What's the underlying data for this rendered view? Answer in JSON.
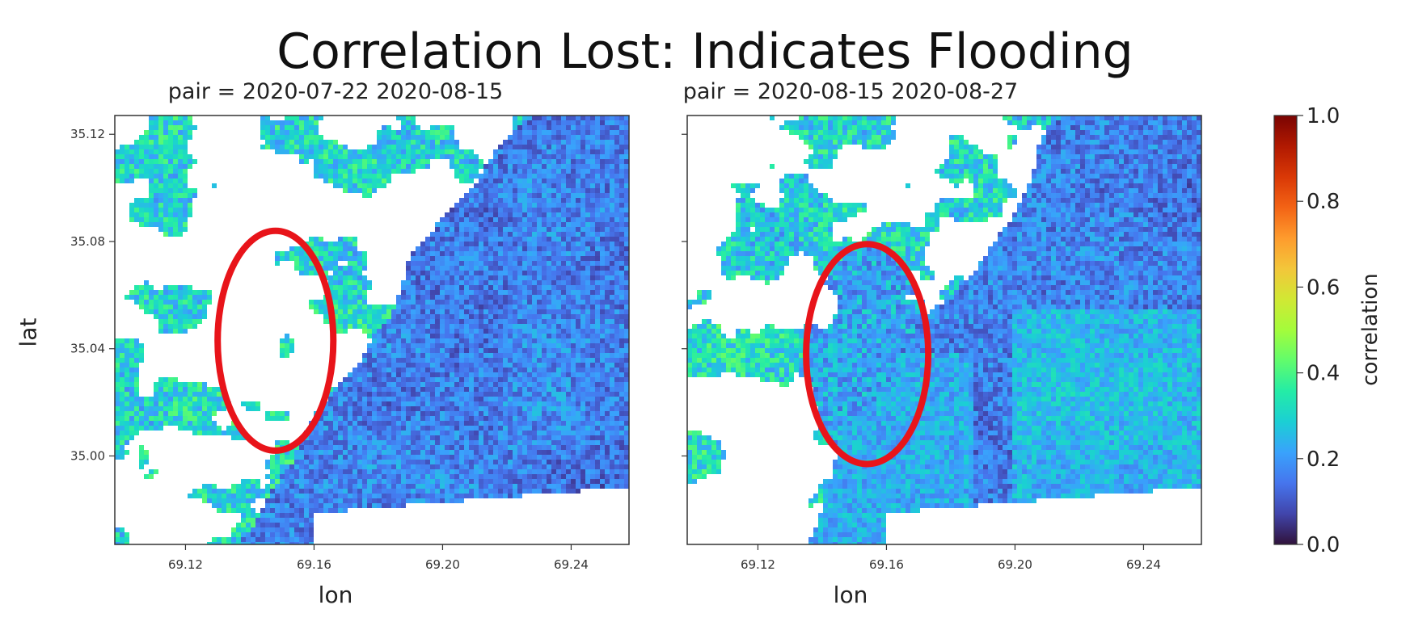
{
  "figure": {
    "title": "Correlation Lost: Indicates Flooding"
  },
  "colormap": [
    "#30123b",
    "#4145ab",
    "#4675ed",
    "#39a2fc",
    "#1bcfd4",
    "#24eca6",
    "#61fc6c",
    "#a4fc3b",
    "#d1e834",
    "#f3c63a",
    "#fe9b2d",
    "#f36315",
    "#d93806",
    "#b11901",
    "#7a0402"
  ],
  "colors": {
    "circle": "#e8141a",
    "nodata": "#ffffff",
    "frame": "#333333"
  },
  "chart_data": [
    {
      "type": "heatmap",
      "title": "pair = 2020-07-22 2020-08-15",
      "xlabel": "lon",
      "ylabel": "lat",
      "xlim": [
        69.098,
        69.258
      ],
      "ylim": [
        34.967,
        35.127
      ],
      "xticks": [
        "69.12",
        "69.16",
        "69.20",
        "69.24"
      ],
      "yticks": [
        "35.12",
        "35.08",
        "35.04",
        "35.00"
      ],
      "annotation": {
        "shape": "circle",
        "center_lon": 69.148,
        "center_lat": 35.043,
        "radius_lon": 0.018,
        "radius_lat": 0.041
      },
      "observation": "low correlation (0.0-0.2) east of lon 69.18; mostly no-data (white) inside circled area"
    },
    {
      "type": "heatmap",
      "title": "pair = 2020-08-15 2020-08-27",
      "xlabel": "lon",
      "ylabel": "",
      "xlim": [
        69.098,
        69.258
      ],
      "ylim": [
        34.967,
        35.127
      ],
      "xticks": [
        "69.12",
        "69.16",
        "69.20",
        "69.24"
      ],
      "yticks": [
        "",
        "",
        "",
        ""
      ],
      "annotation": {
        "shape": "circle",
        "center_lon": 69.154,
        "center_lat": 35.038,
        "radius_lon": 0.019,
        "radius_lat": 0.041
      },
      "observation": "circled area shows correlation 0.1-0.3 where previously no data; correlation lost"
    },
    {
      "type": "colorbar",
      "label": "correlation",
      "range": [
        0.0,
        1.0
      ],
      "ticks": [
        "0.0",
        "0.2",
        "0.4",
        "0.6",
        "0.8",
        "1.0"
      ]
    }
  ]
}
